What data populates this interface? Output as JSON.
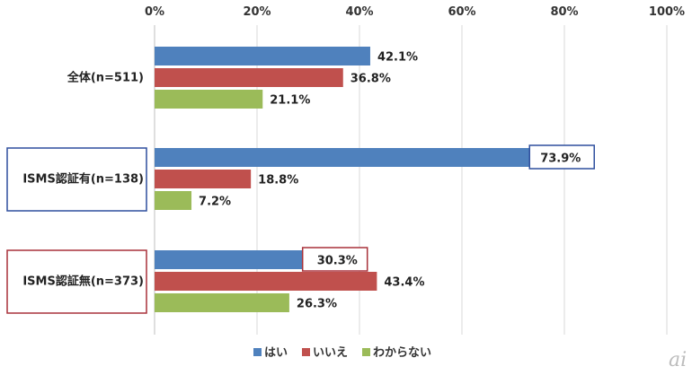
{
  "chart_data": {
    "type": "bar",
    "orientation": "horizontal",
    "categories": [
      "全体(n=511)",
      "ISMS認証有(n=138)",
      "ISMS認証無(n=373)"
    ],
    "series": [
      {
        "name": "はい",
        "color": "#4f81bd",
        "values": [
          42.1,
          73.9,
          30.3
        ],
        "labels": [
          "42.1%",
          "73.9%",
          "30.3%"
        ]
      },
      {
        "name": "いいえ",
        "color": "#c0504d",
        "values": [
          36.8,
          18.8,
          43.4
        ],
        "labels": [
          "36.8%",
          "18.8%",
          "43.4%"
        ]
      },
      {
        "name": "わからない",
        "color": "#9bbb59",
        "values": [
          21.1,
          7.2,
          26.3
        ],
        "labels": [
          "21.1%",
          "7.2%",
          "26.3%"
        ]
      }
    ],
    "xlim": [
      0,
      100
    ],
    "xticks": [
      "0%",
      "20%",
      "40%",
      "60%",
      "80%",
      "100%"
    ],
    "grid": true,
    "legend_position": "bottom",
    "highlights": [
      {
        "category": "ISMS認証有(n=138)",
        "color": "#2e4f9e"
      },
      {
        "category": "ISMS認証無(n=373)",
        "color": "#a8313a"
      }
    ],
    "highlighted_labels": [
      {
        "series": 0,
        "category": 1,
        "color": "#2e4f9e"
      },
      {
        "series": 0,
        "category": 2,
        "color": "#a8313a"
      }
    ]
  },
  "watermark": "ai"
}
